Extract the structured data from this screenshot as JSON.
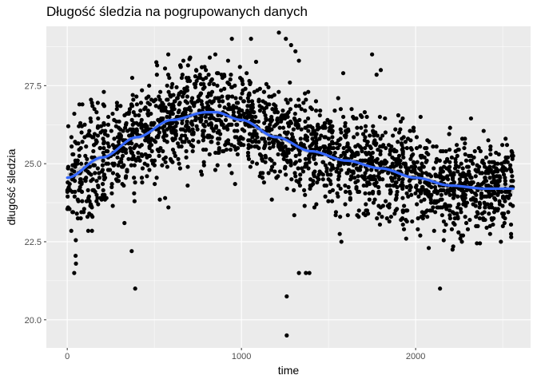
{
  "chart_data": {
    "type": "scatter",
    "title": "Długość śledzia na pogrupowanych danych",
    "xlabel": "time",
    "ylabel": "długość śledzia",
    "xlim": [
      -120,
      2660
    ],
    "ylim": [
      19.1,
      29.4
    ],
    "x_ticks": [
      0,
      1000,
      2000
    ],
    "x_tick_labels": [
      "0",
      "1000",
      "2000"
    ],
    "y_ticks": [
      20.0,
      22.5,
      25.0,
      27.5
    ],
    "y_tick_labels": [
      "20.0",
      "22.5",
      "25.0",
      "27.5"
    ],
    "grid": true,
    "legend": "none",
    "background_color": "#ebebeb",
    "grid_color": "#ffffff",
    "point_color": "#000000",
    "smooth_color": "#3366ff",
    "ribbon_color": "#999999",
    "x_range": [
      0,
      2560
    ],
    "n_points": 2300,
    "trend": {
      "x": [
        0,
        200,
        400,
        600,
        800,
        850,
        1000,
        1200,
        1400,
        1600,
        1800,
        2000,
        2200,
        2400,
        2560
      ],
      "y": [
        24.55,
        25.2,
        25.85,
        26.4,
        26.65,
        26.65,
        26.4,
        25.85,
        25.4,
        25.1,
        24.85,
        24.55,
        24.3,
        24.2,
        24.2
      ]
    },
    "outliers": {
      "x": [
        390,
        1260,
        1260,
        1330,
        2140,
        1370,
        1390,
        40,
        50,
        850,
        945,
        1055,
        1215,
        1255,
        1285,
        1310,
        1330,
        1750,
        1800,
        580,
        370
      ],
      "y": [
        21.0,
        19.5,
        20.75,
        21.5,
        21.0,
        21.5,
        21.5,
        21.5,
        21.8,
        28.5,
        29.0,
        29.0,
        29.2,
        29.0,
        28.8,
        28.6,
        28.3,
        28.5,
        28.0,
        28.5,
        22.2
      ]
    }
  }
}
